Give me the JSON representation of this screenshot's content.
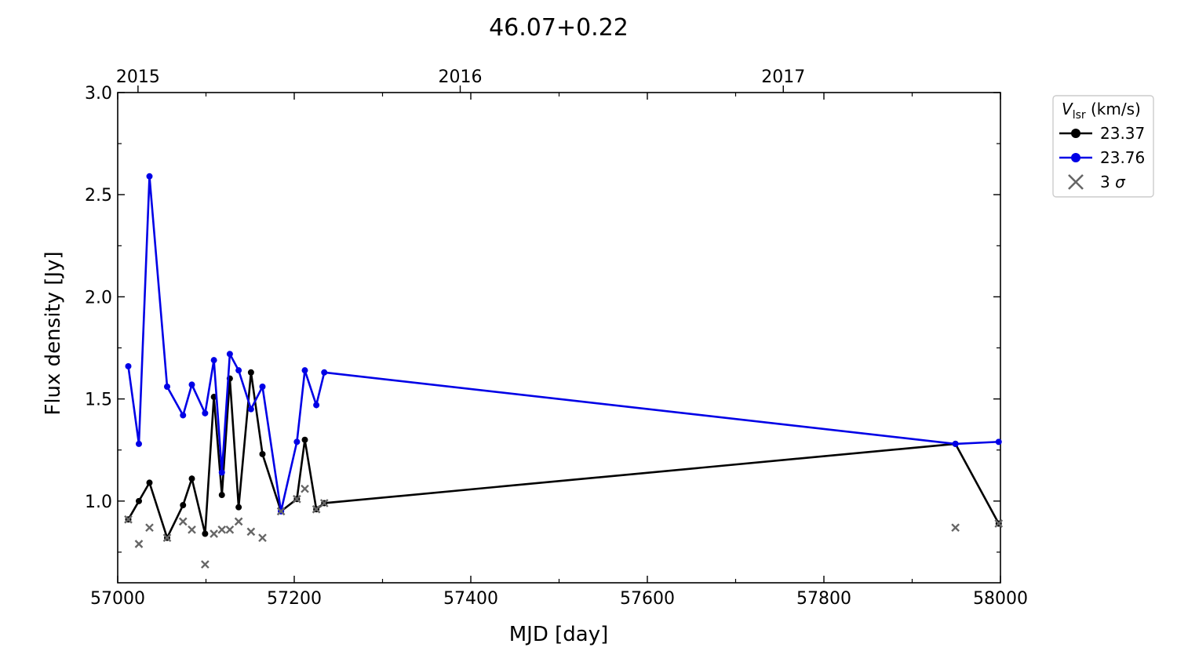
{
  "chart_data": {
    "type": "line",
    "title": "46.07+0.22",
    "xlabel": "MJD [day]",
    "ylabel": "Flux density [Jy]",
    "xlim": [
      57000,
      58000
    ],
    "ylim": [
      0.6,
      3.0
    ],
    "x_ticks": [
      57000,
      57200,
      57400,
      57600,
      57800,
      58000
    ],
    "x_tick_labels": [
      "57000",
      "57200",
      "57400",
      "57600",
      "57800",
      "58000"
    ],
    "y_ticks": [
      1.0,
      1.5,
      2.0,
      2.5,
      3.0
    ],
    "y_tick_labels": [
      "1.0",
      "1.5",
      "2.0",
      "2.5",
      "3.0"
    ],
    "top_axis": {
      "ticks": [
        57023,
        57388,
        57754
      ],
      "tick_labels": [
        "2015",
        "2016",
        "2017"
      ]
    },
    "legend": {
      "title_main": "V",
      "title_sub": "lsr",
      "title_unit": " (km/s)",
      "position": "outside-top-right",
      "entries": [
        "23.37",
        "23.76",
        "3 σ"
      ]
    },
    "series": [
      {
        "name": "23.37",
        "color": "#000000",
        "marker": "circle",
        "x": [
          57012,
          57024,
          57036,
          57056,
          57074,
          57084,
          57099,
          57109,
          57118,
          57127,
          57137,
          57151,
          57164,
          57185,
          57203,
          57212,
          57225,
          57234,
          57949,
          57998
        ],
        "y": [
          0.91,
          1.0,
          1.09,
          0.82,
          0.98,
          1.11,
          0.84,
          1.51,
          1.03,
          1.6,
          0.97,
          1.63,
          1.23,
          0.95,
          1.01,
          1.3,
          0.96,
          0.99,
          1.28,
          0.89
        ]
      },
      {
        "name": "23.76",
        "color": "#0000e6",
        "marker": "circle",
        "x": [
          57012,
          57024,
          57036,
          57056,
          57074,
          57084,
          57099,
          57109,
          57118,
          57127,
          57137,
          57151,
          57164,
          57185,
          57203,
          57212,
          57225,
          57234,
          57949,
          57998
        ],
        "y": [
          1.66,
          1.28,
          2.59,
          1.56,
          1.42,
          1.57,
          1.43,
          1.69,
          1.14,
          1.72,
          1.64,
          1.45,
          1.56,
          0.95,
          1.29,
          1.64,
          1.47,
          1.63,
          1.28,
          1.29
        ]
      },
      {
        "name": "3 σ",
        "color": "#666666",
        "marker": "x",
        "x": [
          57012,
          57024,
          57036,
          57056,
          57074,
          57084,
          57099,
          57109,
          57118,
          57127,
          57137,
          57151,
          57164,
          57185,
          57203,
          57212,
          57225,
          57234,
          57949,
          57998
        ],
        "y": [
          0.91,
          0.79,
          0.87,
          0.82,
          0.9,
          0.86,
          0.69,
          0.84,
          0.86,
          0.86,
          0.9,
          0.85,
          0.82,
          0.95,
          1.01,
          1.06,
          0.96,
          0.99,
          0.87,
          0.89
        ]
      }
    ],
    "grid": false
  }
}
